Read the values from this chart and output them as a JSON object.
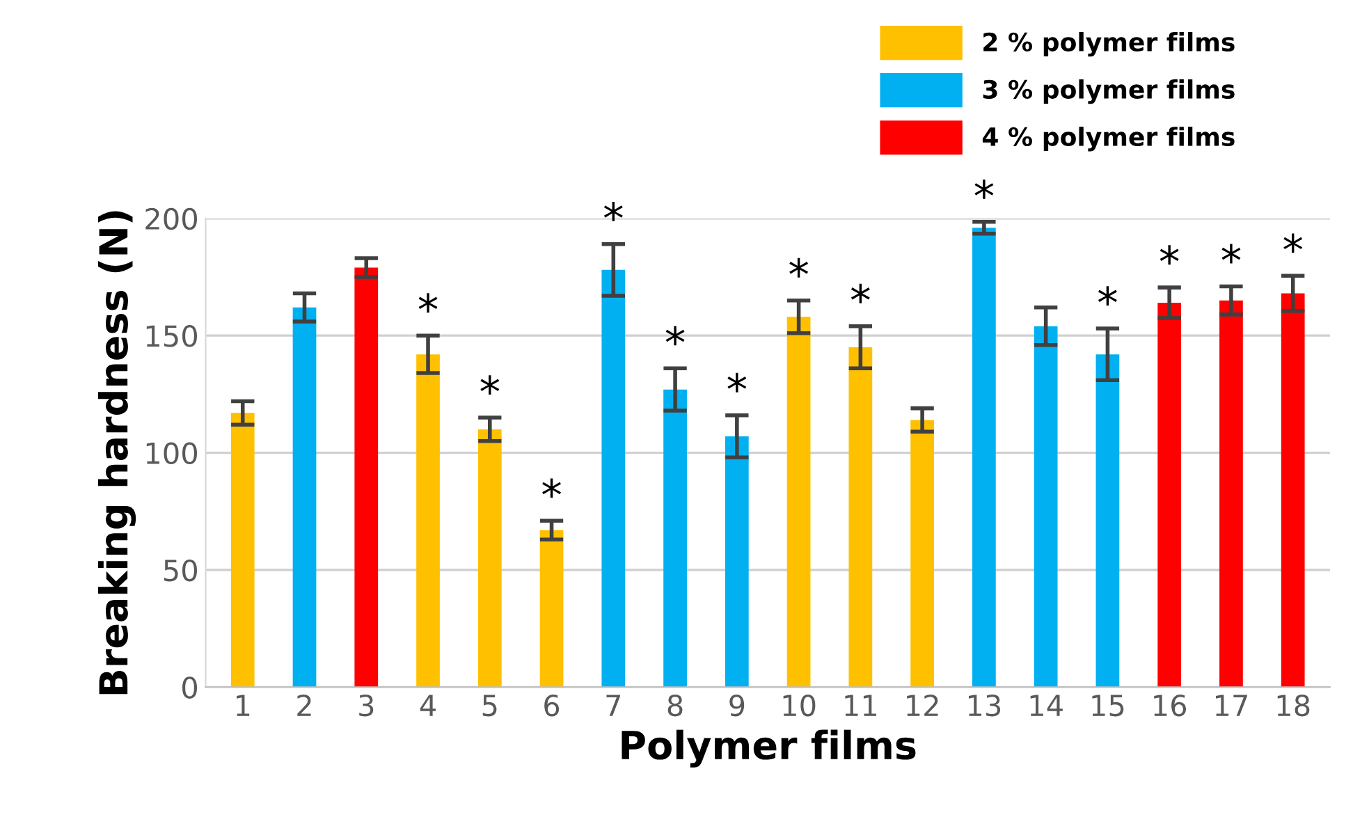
{
  "chart_data": {
    "type": "bar",
    "xlabel": "Polymer films",
    "ylabel": "Breaking hardness (N)",
    "categories": [
      "1",
      "2",
      "3",
      "4",
      "5",
      "6",
      "7",
      "8",
      "9",
      "10",
      "11",
      "12",
      "13",
      "14",
      "15",
      "16",
      "17",
      "18"
    ],
    "series": [
      {
        "name": "2 % polymer films",
        "color": "#ffc000",
        "values": [
          117,
          null,
          null,
          142,
          110,
          67,
          null,
          null,
          null,
          158,
          145,
          114,
          null,
          null,
          null,
          null,
          null,
          null
        ],
        "errors": [
          5,
          null,
          null,
          8,
          5,
          4,
          null,
          null,
          null,
          7,
          9,
          5,
          null,
          null,
          null,
          null,
          null,
          null
        ]
      },
      {
        "name": "3 % polymer films",
        "color": "#00b0f0",
        "values": [
          null,
          162,
          null,
          null,
          null,
          null,
          178,
          127,
          107,
          null,
          null,
          null,
          196,
          154,
          142,
          null,
          null,
          null
        ],
        "errors": [
          null,
          6,
          null,
          null,
          null,
          null,
          11,
          9,
          9,
          null,
          null,
          null,
          2.5,
          8,
          11,
          null,
          null,
          null
        ]
      },
      {
        "name": "4 % polymer films",
        "color": "#ff0000",
        "values": [
          null,
          null,
          179,
          null,
          null,
          null,
          null,
          null,
          null,
          null,
          null,
          null,
          null,
          null,
          null,
          164,
          165,
          168
        ],
        "errors": [
          null,
          null,
          4,
          null,
          null,
          null,
          null,
          null,
          null,
          null,
          null,
          null,
          null,
          null,
          null,
          6.5,
          6,
          7.5
        ]
      }
    ],
    "ylim": [
      0,
      200
    ],
    "yticks": [
      0,
      50,
      100,
      150,
      200
    ],
    "grid": "y",
    "legend": "top right",
    "annotations": [
      {
        "text": "*",
        "x": "4",
        "y": 150
      },
      {
        "text": "*",
        "x": "5",
        "y": 115
      },
      {
        "text": "*",
        "x": "6",
        "y": 71
      },
      {
        "text": "*",
        "x": "7",
        "y": 189
      },
      {
        "text": "*",
        "x": "8",
        "y": 136
      },
      {
        "text": "*",
        "x": "9",
        "y": 116
      },
      {
        "text": "*",
        "x": "10",
        "y": 165
      },
      {
        "text": "*",
        "x": "11",
        "y": 154
      },
      {
        "text": "*",
        "x": "13",
        "y": 198.5
      },
      {
        "text": "*",
        "x": "15",
        "y": 153
      },
      {
        "text": "*",
        "x": "16",
        "y": 170.5
      },
      {
        "text": "*",
        "x": "17",
        "y": 171
      },
      {
        "text": "*",
        "x": "18",
        "y": 175.5
      }
    ]
  }
}
